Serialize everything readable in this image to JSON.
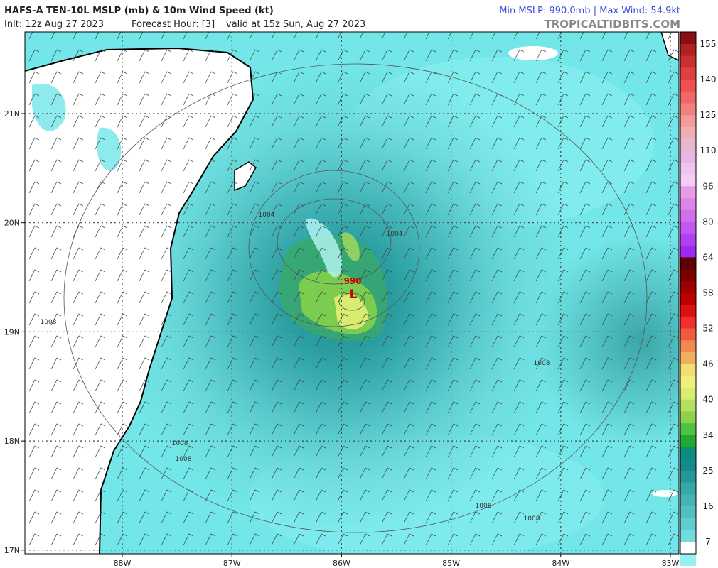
{
  "header": {
    "title": "HAFS-A TEN-10L MSLP (mb) & 10m Wind Speed (kt)",
    "init": "Init: 12z Aug 27 2023",
    "forecast_hour": "Forecast Hour: [3]",
    "valid": "valid at 15z Sun, Aug 27 2023",
    "stats": "Min MSLP: 990.0mb | Max Wind: 54.9kt",
    "site": "TROPICALTIDBITS.COM"
  },
  "map": {
    "lat_labels": [
      "21N",
      "20N",
      "19N",
      "18N",
      "17N"
    ],
    "lon_labels": [
      "88W",
      "87W",
      "86W",
      "85W",
      "84W",
      "83W"
    ],
    "contour_labels": [
      "1004",
      "1004",
      "1008",
      "1008",
      "1008",
      "1008",
      "1008",
      "1008"
    ],
    "low_pressure": "990",
    "low_marker": "L"
  },
  "colorbar": {
    "labels": [
      155,
      140,
      125,
      110,
      96,
      80,
      64,
      58,
      52,
      46,
      40,
      34,
      25,
      16,
      7
    ]
  }
}
